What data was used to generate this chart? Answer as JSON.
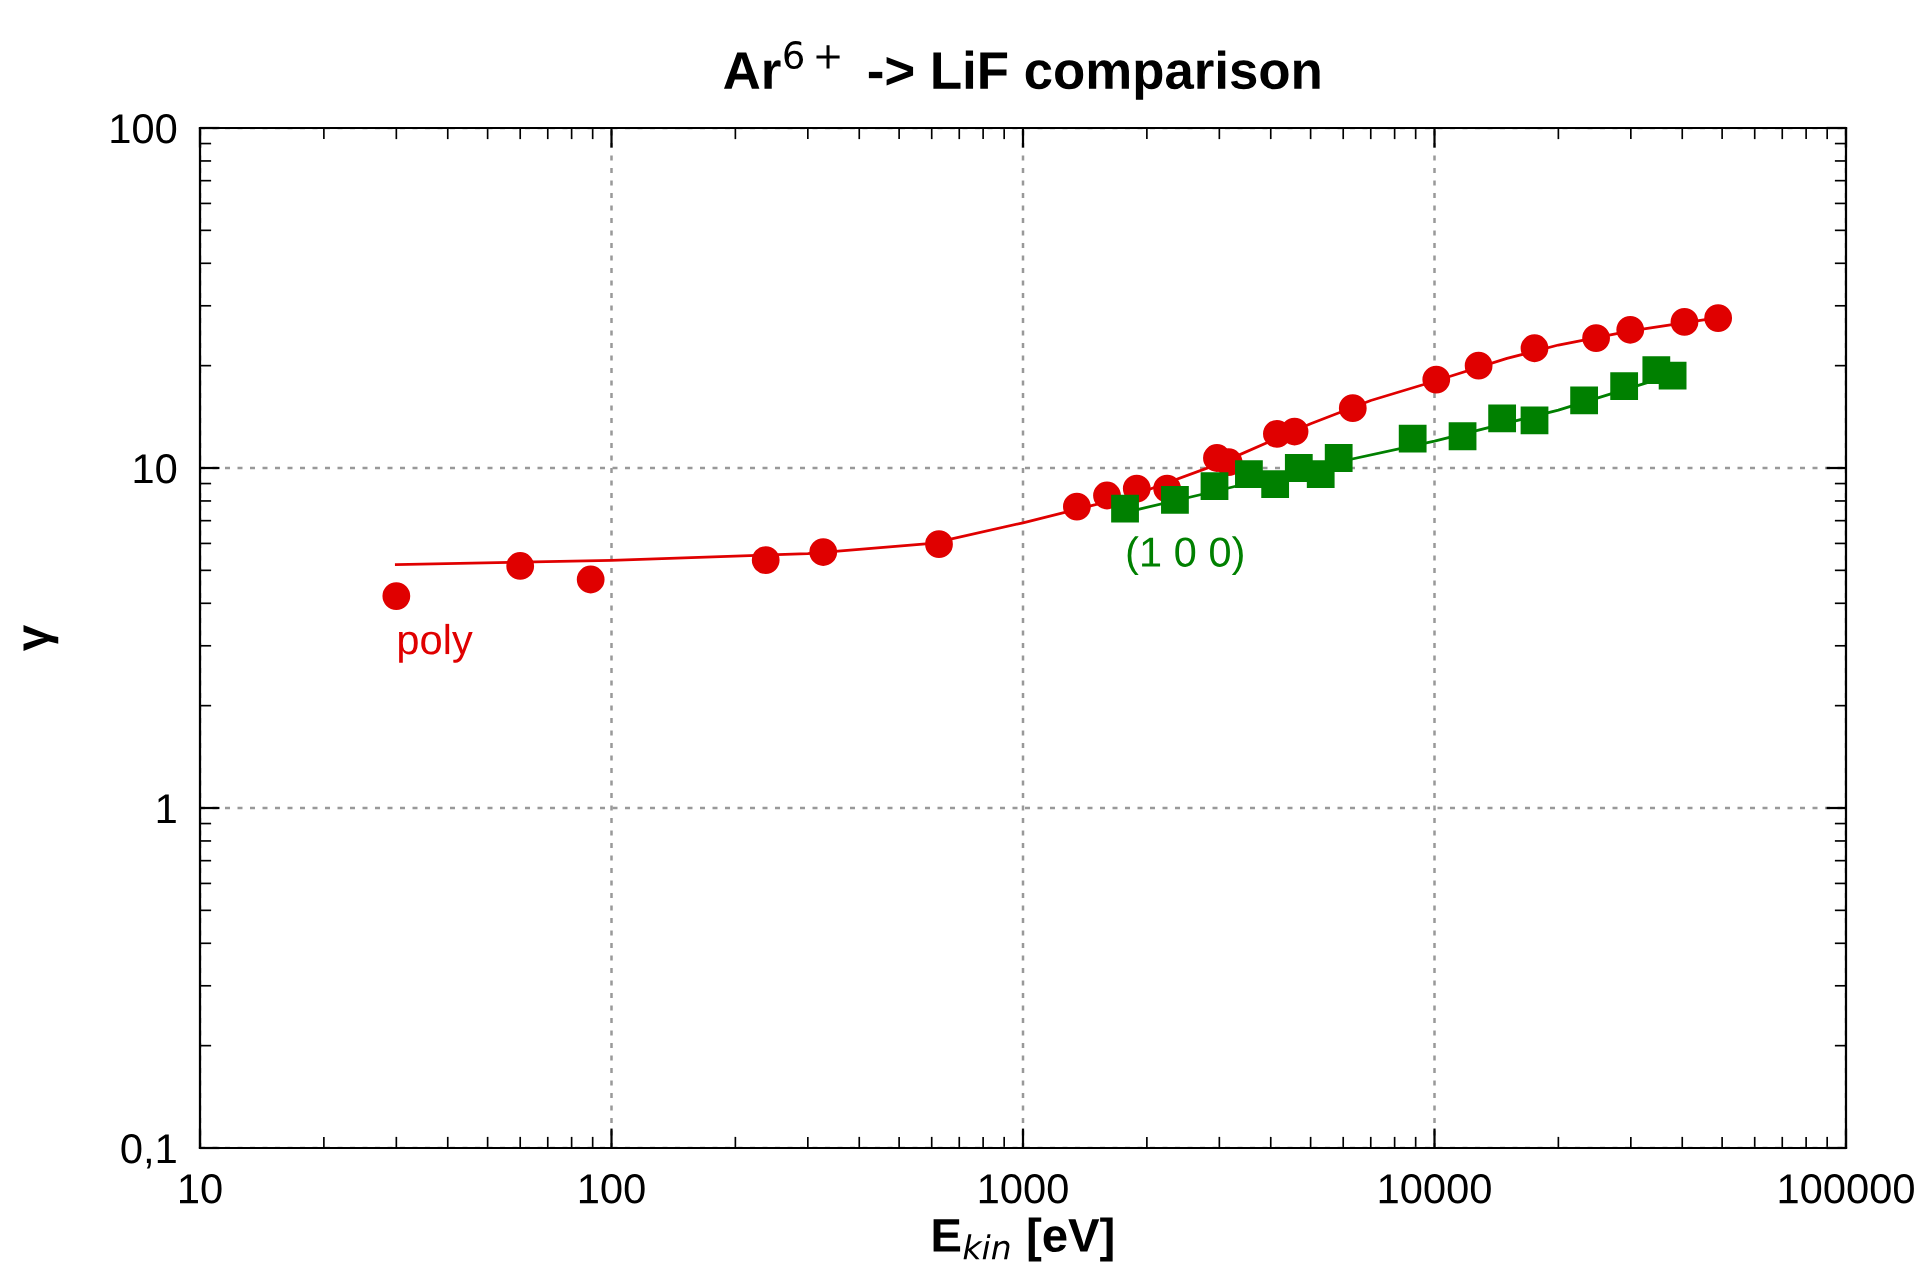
{
  "chart_data": {
    "type": "scatter",
    "title": "Ar$^{6+}$ -> LiF comparison",
    "xlabel": "E$_{kin}$ [eV]",
    "ylabel": "γ",
    "log": "xy",
    "grid": true,
    "legend": false,
    "xlim": [
      10,
      100000
    ],
    "xticks": [
      10,
      100,
      1000,
      10000,
      100000
    ],
    "ylim": [
      0.1,
      100
    ],
    "yticks": [
      {
        "value": 0.1,
        "label": "0,1"
      },
      1,
      10,
      100
    ],
    "series": [
      {
        "name": "poly",
        "color": "#e00000",
        "marker": "circle",
        "x": [
          30,
          60,
          89,
          237,
          327,
          625,
          1352,
          1600,
          1890,
          2240,
          2960,
          3160,
          4140,
          4570,
          6330,
          10100,
          12800,
          17500,
          24700,
          29900,
          40500,
          48900
        ],
        "values": [
          4.2,
          5.15,
          4.7,
          5.36,
          5.66,
          5.97,
          7.7,
          8.3,
          8.7,
          8.7,
          10.7,
          10.4,
          12.6,
          12.8,
          15.0,
          18.2,
          20.0,
          22.5,
          24.1,
          25.5,
          26.9,
          27.6
        ]
      },
      {
        "name": "(1 0 0)",
        "color": "#008000",
        "marker": "square",
        "x": [
          1770,
          2340,
          2920,
          3540,
          4100,
          4680,
          5290,
          5850,
          8850,
          11700,
          14600,
          17500,
          23100,
          28900,
          34600,
          37900
        ],
        "values": [
          7.6,
          8.06,
          8.85,
          9.6,
          8.97,
          10.0,
          9.6,
          10.7,
          12.2,
          12.4,
          14.0,
          13.8,
          15.8,
          17.4,
          19.4,
          18.7
        ]
      },
      {
        "type": "line",
        "color": "#e00000",
        "marker": "none",
        "x": [
          30,
          100,
          300,
          600,
          1000,
          1500,
          2000,
          3000,
          5000,
          7000,
          10000,
          15000,
          20000,
          30000,
          50000
        ],
        "values": [
          5.2,
          5.35,
          5.6,
          6.0,
          6.9,
          7.8,
          8.6,
          10.3,
          13.5,
          15.8,
          18,
          21,
          23,
          25.3,
          27.8
        ]
      },
      {
        "type": "line",
        "color": "#008000",
        "marker": "none",
        "x": [
          1770,
          3000,
          5000,
          10000,
          20000,
          37900
        ],
        "values": [
          7.4,
          8.6,
          10.0,
          12.0,
          14.8,
          18.8
        ]
      }
    ]
  }
}
